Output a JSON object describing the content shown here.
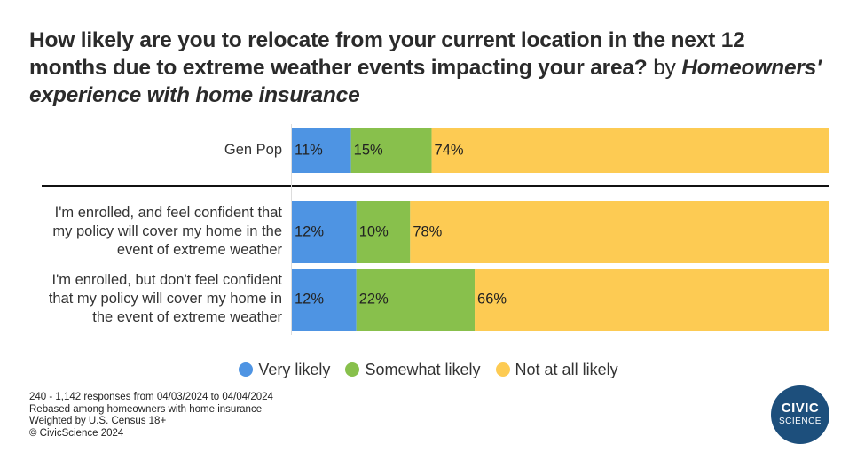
{
  "title": {
    "main": "How likely are you to relocate from your current location in the next 12 months due to extreme weather events impacting your area?",
    "by": "by",
    "subtitle": "Homeowners' experience with home insurance"
  },
  "colors": {
    "very_likely": "#4e94e3",
    "somewhat_likely": "#88c04c",
    "not_at_all_likely": "#fdcb53",
    "divider": "#111111",
    "logo": "#1d4f7c"
  },
  "chart_data": {
    "type": "bar",
    "orientation": "horizontal",
    "stacked": true,
    "percent_scale": [
      0,
      100
    ],
    "categories": [
      "Gen Pop",
      "I'm enrolled, and feel confident that my policy will cover my home in the event of extreme weather",
      "I'm enrolled, but don't feel confident that my policy will cover my home in the event of extreme weather"
    ],
    "category_lines": [
      [
        "Gen Pop"
      ],
      [
        "I'm enrolled, and feel confident that",
        "my policy will cover my home in the",
        "event of extreme weather"
      ],
      [
        "I'm enrolled, but don't feel confident",
        "that my policy will cover my home in",
        "the event of extreme weather"
      ]
    ],
    "series": [
      {
        "name": "Very likely",
        "values": [
          11,
          12,
          12
        ],
        "labels": [
          "11%",
          "12%",
          "12%"
        ]
      },
      {
        "name": "Somewhat likely",
        "values": [
          15,
          10,
          22
        ],
        "labels": [
          "15%",
          "10%",
          "22%"
        ]
      },
      {
        "name": "Not at all likely",
        "values": [
          74,
          78,
          66
        ],
        "labels": [
          "74%",
          "78%",
          "66%"
        ]
      }
    ],
    "legend_position": "bottom",
    "grid": false
  },
  "legend": {
    "items": [
      "Very likely",
      "Somewhat likely",
      "Not at all likely"
    ]
  },
  "notes": {
    "responses": "240 - 1,142 responses from 04/03/2024 to 04/04/2024",
    "rebased": "Rebased among homeowners with home insurance",
    "weighted": "Weighted by U.S. Census 18+",
    "copyright": "© CivicScience 2024"
  },
  "logo": {
    "line1": "CIVIC",
    "line2": "SCIENCE"
  }
}
